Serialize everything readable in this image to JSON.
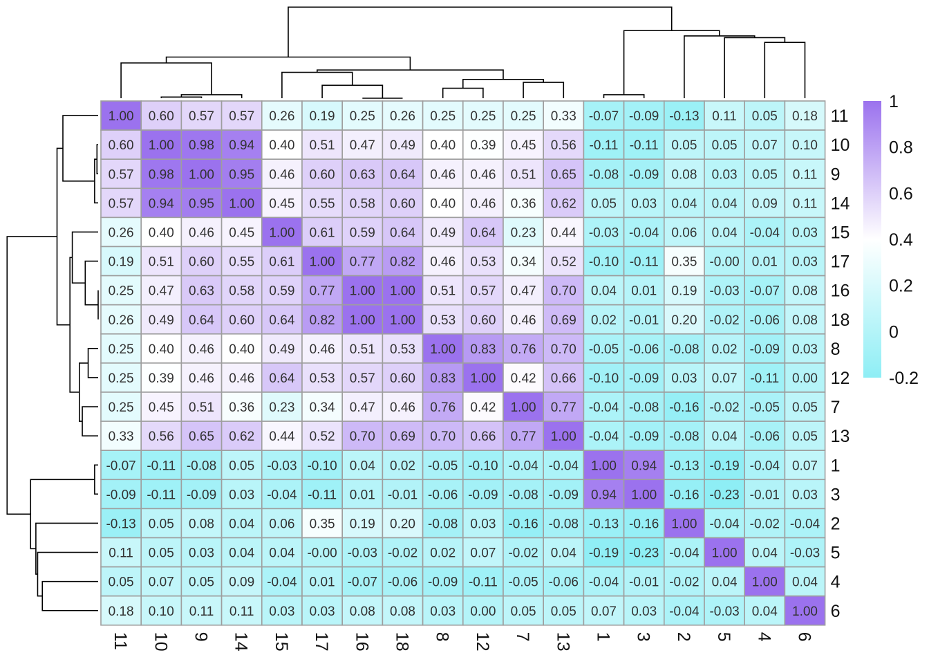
{
  "chart_data": {
    "type": "heatmap",
    "title": "",
    "order": [
      "11",
      "10",
      "9",
      "14",
      "15",
      "17",
      "16",
      "18",
      "8",
      "12",
      "7",
      "13",
      "1",
      "3",
      "2",
      "5",
      "4",
      "6"
    ],
    "row_labels": [
      "11",
      "10",
      "9",
      "14",
      "15",
      "17",
      "16",
      "18",
      "8",
      "12",
      "7",
      "13",
      "1",
      "3",
      "2",
      "5",
      "4",
      "6"
    ],
    "col_labels": [
      "11",
      "10",
      "9",
      "14",
      "15",
      "17",
      "16",
      "18",
      "8",
      "12",
      "7",
      "13",
      "1",
      "3",
      "2",
      "5",
      "4",
      "6"
    ],
    "values": [
      [
        1.0,
        0.6,
        0.57,
        0.57,
        0.26,
        0.19,
        0.25,
        0.26,
        0.25,
        0.25,
        0.25,
        0.33,
        -0.07,
        -0.09,
        -0.13,
        0.11,
        0.05,
        0.18
      ],
      [
        0.6,
        1.0,
        0.98,
        0.94,
        0.4,
        0.51,
        0.47,
        0.49,
        0.4,
        0.39,
        0.45,
        0.56,
        -0.11,
        -0.11,
        0.05,
        0.05,
        0.07,
        0.1
      ],
      [
        0.57,
        0.98,
        1.0,
        0.95,
        0.46,
        0.6,
        0.63,
        0.64,
        0.46,
        0.46,
        0.51,
        0.65,
        -0.08,
        -0.09,
        0.08,
        0.03,
        0.05,
        0.11
      ],
      [
        0.57,
        0.94,
        0.95,
        1.0,
        0.45,
        0.55,
        0.58,
        0.6,
        0.4,
        0.46,
        0.36,
        0.62,
        0.05,
        0.03,
        0.04,
        0.04,
        0.09,
        0.11
      ],
      [
        0.26,
        0.4,
        0.46,
        0.45,
        1.0,
        0.61,
        0.59,
        0.64,
        0.49,
        0.64,
        0.23,
        0.44,
        -0.03,
        -0.04,
        0.06,
        0.04,
        -0.04,
        0.03
      ],
      [
        0.19,
        0.51,
        0.6,
        0.55,
        0.61,
        1.0,
        0.77,
        0.82,
        0.46,
        0.53,
        0.34,
        0.52,
        -0.1,
        -0.11,
        0.35,
        -0.0,
        0.01,
        0.03
      ],
      [
        0.25,
        0.47,
        0.63,
        0.58,
        0.59,
        0.77,
        1.0,
        1.0,
        0.51,
        0.57,
        0.47,
        0.7,
        0.04,
        0.01,
        0.19,
        -0.03,
        -0.07,
        0.08
      ],
      [
        0.26,
        0.49,
        0.64,
        0.6,
        0.64,
        0.82,
        1.0,
        1.0,
        0.53,
        0.6,
        0.46,
        0.69,
        0.02,
        -0.01,
        0.2,
        -0.02,
        -0.06,
        0.08
      ],
      [
        0.25,
        0.4,
        0.46,
        0.4,
        0.49,
        0.46,
        0.51,
        0.53,
        1.0,
        0.83,
        0.76,
        0.7,
        -0.05,
        -0.06,
        -0.08,
        0.02,
        -0.09,
        0.03
      ],
      [
        0.25,
        0.39,
        0.46,
        0.46,
        0.64,
        0.53,
        0.57,
        0.6,
        0.83,
        1.0,
        0.42,
        0.66,
        -0.1,
        -0.09,
        0.03,
        0.07,
        -0.11,
        0.0
      ],
      [
        0.25,
        0.45,
        0.51,
        0.36,
        0.23,
        0.34,
        0.47,
        0.46,
        0.76,
        0.42,
        1.0,
        0.77,
        -0.04,
        -0.08,
        -0.16,
        -0.02,
        -0.05,
        0.05
      ],
      [
        0.33,
        0.56,
        0.65,
        0.62,
        0.44,
        0.52,
        0.7,
        0.69,
        0.7,
        0.66,
        0.77,
        1.0,
        -0.04,
        -0.09,
        -0.08,
        0.04,
        -0.06,
        0.05
      ],
      [
        -0.07,
        -0.11,
        -0.08,
        0.05,
        -0.03,
        -0.1,
        0.04,
        0.02,
        -0.05,
        -0.1,
        -0.04,
        -0.04,
        1.0,
        0.94,
        -0.13,
        -0.19,
        -0.04,
        0.07
      ],
      [
        -0.09,
        -0.11,
        -0.09,
        0.03,
        -0.04,
        -0.11,
        0.01,
        -0.01,
        -0.06,
        -0.09,
        -0.08,
        -0.09,
        0.94,
        1.0,
        -0.16,
        -0.23,
        -0.01,
        0.03
      ],
      [
        -0.13,
        0.05,
        0.08,
        0.04,
        0.06,
        0.35,
        0.19,
        0.2,
        -0.08,
        0.03,
        -0.16,
        -0.08,
        -0.13,
        -0.16,
        1.0,
        -0.04,
        -0.02,
        -0.04
      ],
      [
        0.11,
        0.05,
        0.03,
        0.04,
        0.04,
        -0.0,
        -0.03,
        -0.02,
        0.02,
        0.07,
        -0.02,
        0.04,
        -0.19,
        -0.23,
        -0.04,
        1.0,
        0.04,
        -0.03
      ],
      [
        0.05,
        0.07,
        0.05,
        0.09,
        -0.04,
        0.01,
        -0.07,
        -0.06,
        -0.09,
        -0.11,
        -0.05,
        -0.06,
        -0.04,
        -0.01,
        -0.02,
        0.04,
        1.0,
        0.04
      ],
      [
        0.18,
        0.1,
        0.11,
        0.11,
        0.03,
        0.03,
        0.08,
        0.08,
        0.03,
        0.0,
        0.05,
        0.05,
        0.07,
        0.03,
        -0.04,
        -0.03,
        0.04,
        1.0
      ]
    ],
    "value_labels": [
      [
        "1.00",
        "0.60",
        "0.57",
        "0.57",
        "0.26",
        "0.19",
        "0.25",
        "0.26",
        "0.25",
        "0.25",
        "0.25",
        "0.33",
        "-0.07",
        "-0.09",
        "-0.13",
        "0.11",
        "0.05",
        "0.18"
      ],
      [
        "0.60",
        "1.00",
        "0.98",
        "0.94",
        "0.40",
        "0.51",
        "0.47",
        "0.49",
        "0.40",
        "0.39",
        "0.45",
        "0.56",
        "-0.11",
        "-0.11",
        "0.05",
        "0.05",
        "0.07",
        "0.10"
      ],
      [
        "0.57",
        "0.98",
        "1.00",
        "0.95",
        "0.46",
        "0.60",
        "0.63",
        "0.64",
        "0.46",
        "0.46",
        "0.51",
        "0.65",
        "-0.08",
        "-0.09",
        "0.08",
        "0.03",
        "0.05",
        "0.11"
      ],
      [
        "0.57",
        "0.94",
        "0.95",
        "1.00",
        "0.45",
        "0.55",
        "0.58",
        "0.60",
        "0.40",
        "0.46",
        "0.36",
        "0.62",
        "0.05",
        "0.03",
        "0.04",
        "0.04",
        "0.09",
        "0.11"
      ],
      [
        "0.26",
        "0.40",
        "0.46",
        "0.45",
        "1.00",
        "0.61",
        "0.59",
        "0.64",
        "0.49",
        "0.64",
        "0.23",
        "0.44",
        "-0.03",
        "-0.04",
        "0.06",
        "0.04",
        "-0.04",
        "0.03"
      ],
      [
        "0.19",
        "0.51",
        "0.60",
        "0.55",
        "0.61",
        "1.00",
        "0.77",
        "0.82",
        "0.46",
        "0.53",
        "0.34",
        "0.52",
        "-0.10",
        "-0.11",
        "0.35",
        "-0.00",
        "0.01",
        "0.03"
      ],
      [
        "0.25",
        "0.47",
        "0.63",
        "0.58",
        "0.59",
        "0.77",
        "1.00",
        "1.00",
        "0.51",
        "0.57",
        "0.47",
        "0.70",
        "0.04",
        "0.01",
        "0.19",
        "-0.03",
        "-0.07",
        "0.08"
      ],
      [
        "0.26",
        "0.49",
        "0.64",
        "0.60",
        "0.64",
        "0.82",
        "1.00",
        "1.00",
        "0.53",
        "0.60",
        "0.46",
        "0.69",
        "0.02",
        "-0.01",
        "0.20",
        "-0.02",
        "-0.06",
        "0.08"
      ],
      [
        "0.25",
        "0.40",
        "0.46",
        "0.40",
        "0.49",
        "0.46",
        "0.51",
        "0.53",
        "1.00",
        "0.83",
        "0.76",
        "0.70",
        "-0.05",
        "-0.06",
        "-0.08",
        "0.02",
        "-0.09",
        "0.03"
      ],
      [
        "0.25",
        "0.39",
        "0.46",
        "0.46",
        "0.64",
        "0.53",
        "0.57",
        "0.60",
        "0.83",
        "1.00",
        "0.42",
        "0.66",
        "-0.10",
        "-0.09",
        "0.03",
        "0.07",
        "-0.11",
        "0.00"
      ],
      [
        "0.25",
        "0.45",
        "0.51",
        "0.36",
        "0.23",
        "0.34",
        "0.47",
        "0.46",
        "0.76",
        "0.42",
        "1.00",
        "0.77",
        "-0.04",
        "-0.08",
        "-0.16",
        "-0.02",
        "-0.05",
        "0.05"
      ],
      [
        "0.33",
        "0.56",
        "0.65",
        "0.62",
        "0.44",
        "0.52",
        "0.70",
        "0.69",
        "0.70",
        "0.66",
        "0.77",
        "1.00",
        "-0.04",
        "-0.09",
        "-0.08",
        "0.04",
        "-0.06",
        "0.05"
      ],
      [
        "-0.07",
        "-0.11",
        "-0.08",
        "0.05",
        "-0.03",
        "-0.10",
        "0.04",
        "0.02",
        "-0.05",
        "-0.10",
        "-0.04",
        "-0.04",
        "1.00",
        "0.94",
        "-0.13",
        "-0.19",
        "-0.04",
        "0.07"
      ],
      [
        "-0.09",
        "-0.11",
        "-0.09",
        "0.03",
        "-0.04",
        "-0.11",
        "0.01",
        "-0.01",
        "-0.06",
        "-0.09",
        "-0.08",
        "-0.09",
        "0.94",
        "1.00",
        "-0.16",
        "-0.23",
        "-0.01",
        "0.03"
      ],
      [
        "-0.13",
        "0.05",
        "0.08",
        "0.04",
        "0.06",
        "0.35",
        "0.19",
        "0.20",
        "-0.08",
        "0.03",
        "-0.16",
        "-0.08",
        "-0.13",
        "-0.16",
        "1.00",
        "-0.04",
        "-0.02",
        "-0.04"
      ],
      [
        "0.11",
        "0.05",
        "0.03",
        "0.04",
        "0.04",
        "-0.00",
        "-0.03",
        "-0.02",
        "0.02",
        "0.07",
        "-0.02",
        "0.04",
        "-0.19",
        "-0.23",
        "-0.04",
        "1.00",
        "0.04",
        "-0.03"
      ],
      [
        "0.05",
        "0.07",
        "0.05",
        "0.09",
        "-0.04",
        "0.01",
        "-0.07",
        "-0.06",
        "-0.09",
        "-0.11",
        "-0.05",
        "-0.06",
        "-0.04",
        "-0.01",
        "-0.02",
        "0.04",
        "1.00",
        "0.04"
      ],
      [
        "0.18",
        "0.10",
        "0.11",
        "0.11",
        "0.03",
        "0.03",
        "0.08",
        "0.08",
        "0.03",
        "0.00",
        "0.05",
        "0.05",
        "0.07",
        "0.03",
        "-0.04",
        "-0.03",
        "0.04",
        "1.00"
      ]
    ],
    "dendrogram": {
      "merges": [
        [
          "16",
          "18",
          0.0
        ],
        [
          "10",
          "9",
          0.02
        ],
        [
          "1",
          "3",
          0.06
        ],
        [
          "M2",
          "14",
          0.06
        ],
        [
          "17",
          "M1",
          0.22
        ],
        [
          "8",
          "12",
          0.17
        ],
        [
          "7",
          "13",
          0.27
        ],
        [
          "11",
          "M4",
          0.6
        ],
        [
          "15",
          "M5",
          0.44
        ],
        [
          "4",
          "6",
          0.95
        ],
        [
          "5",
          "M10",
          1.03
        ],
        [
          "2",
          "M11",
          1.06
        ],
        [
          "M6",
          "M7",
          0.32
        ],
        [
          "M9",
          "M13",
          0.48
        ],
        [
          "M8",
          "M14",
          0.7
        ],
        [
          "M3",
          "M12",
          1.15
        ],
        [
          "M15",
          "M16",
          1.55
        ]
      ],
      "max_height": 1.6
    },
    "color_scale": {
      "min": -0.2,
      "max": 1,
      "low": "#8eeef5",
      "mid": "#ffffff",
      "high": "#9b72ee",
      "mid_value": 0.4
    },
    "colorbar_ticks": [
      "1",
      "0.8",
      "0.6",
      "0.4",
      "0.2",
      "0",
      "-0.2"
    ],
    "colorbar_tick_values": [
      1,
      0.8,
      0.6,
      0.4,
      0.2,
      0,
      -0.2
    ],
    "cell_border_color": "#9e9e9e",
    "dendrogram_color": "#000000"
  }
}
